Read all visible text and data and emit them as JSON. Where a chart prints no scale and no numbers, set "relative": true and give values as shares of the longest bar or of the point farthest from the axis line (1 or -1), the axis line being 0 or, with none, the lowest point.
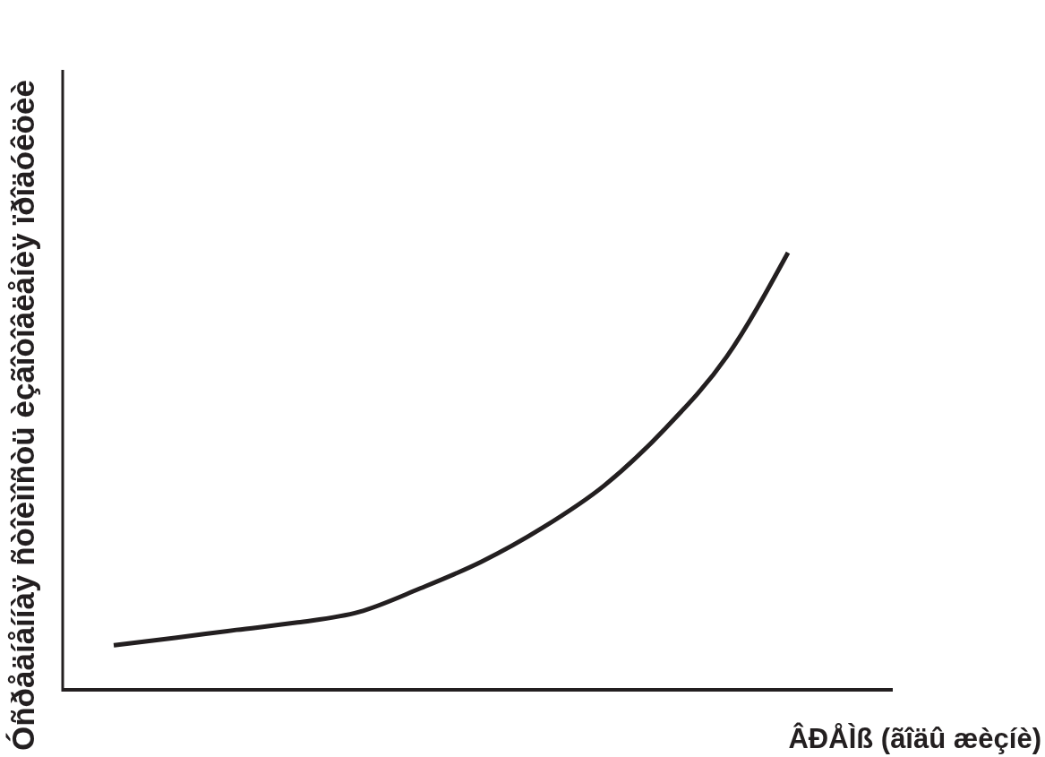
{
  "chart_data": {
    "type": "line",
    "xlabel": "ÂÐÅÌß (ãîäû æèçíè)",
    "ylabel": "Óñðåäíåííàÿ ñòîèìîñòü èçãîòîâëåíèÿ ïðîäóêöèè",
    "relative": true,
    "categories": [
      null,
      null,
      null,
      null,
      null,
      null,
      null,
      null,
      null,
      null,
      null,
      null
    ],
    "values": [
      0.102,
      0.119,
      0.137,
      0.154,
      0.178,
      0.232,
      0.293,
      0.371,
      0.467,
      0.598,
      0.762,
      1
    ],
    "color": "#231f20"
  }
}
